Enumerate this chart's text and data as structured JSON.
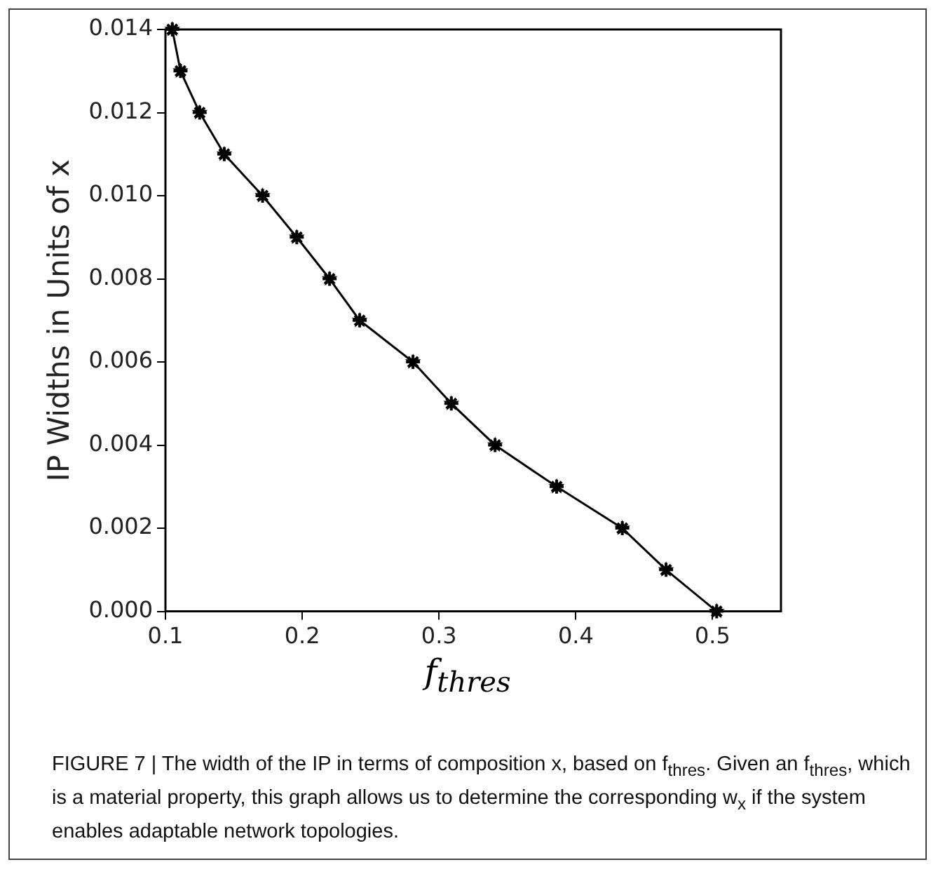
{
  "chart_data": {
    "type": "line",
    "xlabel": "f$_{thres}$",
    "ylabel": "IP Widths in Units of x",
    "x": [
      0.105,
      0.111,
      0.125,
      0.143,
      0.171,
      0.196,
      0.22,
      0.242,
      0.281,
      0.309,
      0.341,
      0.386,
      0.434,
      0.466,
      0.503
    ],
    "series": [
      {
        "color": "#000000",
        "values": [
          0.014,
          0.013,
          0.012,
          0.011,
          0.01,
          0.009,
          0.008,
          0.007,
          0.006,
          0.005,
          0.004,
          0.003,
          0.002,
          0.001,
          0.0
        ]
      }
    ],
    "xlim": [
      0.1,
      0.55
    ],
    "xticks": [
      0.1,
      0.2,
      0.3,
      0.4,
      0.5
    ],
    "ylim": [
      0,
      0.014
    ],
    "yticks": [
      {
        "value": 0,
        "label": "0.000"
      },
      {
        "value": 0.002,
        "label": "0.002"
      },
      {
        "value": 0.004,
        "label": "0.004"
      },
      {
        "value": 0.006,
        "label": "0.006"
      },
      {
        "value": 0.008,
        "label": "0.008"
      },
      {
        "value": 0.01,
        "label": "0.010"
      },
      {
        "value": 0.012,
        "label": "0.012"
      },
      {
        "value": 0.014,
        "label": "0.014"
      }
    ],
    "marker": "star",
    "line_style": "solid",
    "grid": false,
    "legend": false,
    "annotations": [
      "FIGURE 7 | The width of the IP in terms of composition x, based on f$_{thres}$. Given an f$_{thres}$, which is a material property, this graph allows us to determine the corresponding w$_{x}$ if the system enables adaptable network topologies."
    ]
  }
}
